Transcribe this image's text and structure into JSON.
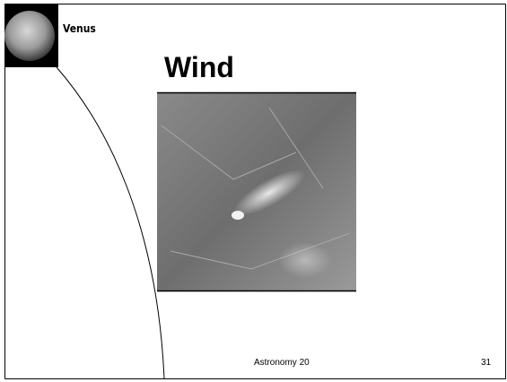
{
  "header": {
    "section": "Venus",
    "title": "Wind"
  },
  "footer": {
    "course": "Astronomy 20",
    "page": "31"
  }
}
